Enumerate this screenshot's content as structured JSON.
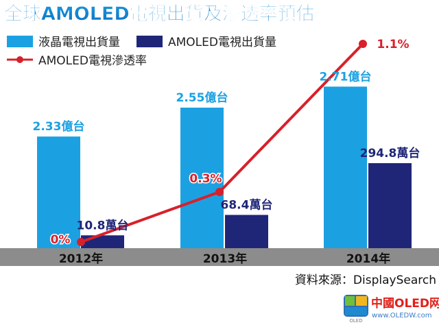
{
  "chart_data": {
    "type": "bar",
    "title": "全球AMOLED電視出貨及滲透率預估",
    "categories": [
      "2012年",
      "2013年",
      "2014年"
    ],
    "series": [
      {
        "name": "液晶電視出貨量",
        "values": [
          2.33,
          2.55,
          2.71
        ],
        "labels": [
          "2.33億台",
          "2.55億台",
          "2.71億台"
        ],
        "color": "#1ba1e2"
      },
      {
        "name": "AMOLED電視出貨量",
        "values": [
          10.8,
          68.4,
          294.8
        ],
        "labels": [
          "10.8萬台",
          "68.4萬台",
          "294.8萬台"
        ],
        "color": "#1f2678"
      },
      {
        "name": "AMOLED電視滲透率",
        "type": "line",
        "values": [
          0,
          0.3,
          1.1
        ],
        "labels": [
          "0%",
          "0.3%",
          "1.1%"
        ],
        "color": "#d8202a"
      }
    ],
    "legend_position": "top-left",
    "grid": false
  },
  "source": "資料來源：DisplaySearch",
  "watermark": {
    "text": "中國OLED网",
    "url": "www.OLEDW.com",
    "badge": "OLED"
  }
}
